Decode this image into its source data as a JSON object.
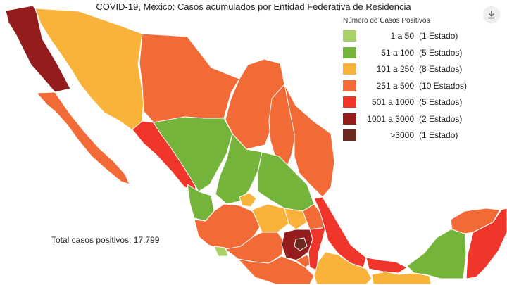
{
  "title": "COVID-19, México: Casos acumulados por Entidad Federativa de Residencia",
  "legend": {
    "title": "Número de Casos Positivos",
    "items": [
      {
        "range": "1 a 50",
        "count": "(1 Estado)",
        "color": "#a8d265"
      },
      {
        "range": "51 a 100",
        "count": "(5 Estados)",
        "color": "#74b43a"
      },
      {
        "range": "101 a 250",
        "count": "(8 Estados)",
        "color": "#f9b23a"
      },
      {
        "range": "251 a 500",
        "count": "(10 Estados)",
        "color": "#f26b36"
      },
      {
        "range": "501 a 1000",
        "count": "(5 Estados)",
        "color": "#f0352b"
      },
      {
        "range": "1001 a 3000",
        "count": "(2 Estados)",
        "color": "#941c1c"
      },
      {
        "range": ">3000",
        "count": "(1 Estado)",
        "color": "#6b2a20"
      }
    ]
  },
  "total_label": "Total casos positivos: 17,799",
  "download_icon": "download-icon"
}
